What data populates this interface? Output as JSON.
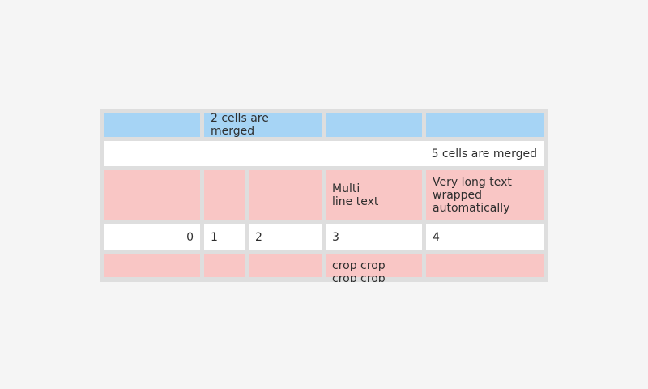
{
  "page": {
    "background_color": "#f5f5f5"
  },
  "table_widget": {
    "frame_color": "#dedede",
    "text_color": "#2e2e2e",
    "cell_colors": {
      "blue": "#a6d4f5",
      "white": "#ffffff",
      "pink": "#f9c6c5"
    },
    "rows": [
      {
        "style": "blue",
        "cells": [
          {
            "text": "",
            "colspan": 1
          },
          {
            "text": "2 cells are merged",
            "colspan": 2,
            "align": "left"
          },
          {
            "text": "",
            "colspan": 1
          },
          {
            "text": "",
            "colspan": 1
          }
        ]
      },
      {
        "style": "white",
        "cells": [
          {
            "text": "5 cells are merged",
            "colspan": 5,
            "align": "right"
          }
        ]
      },
      {
        "style": "pink",
        "cells": [
          {
            "text": ""
          },
          {
            "text": ""
          },
          {
            "text": ""
          },
          {
            "text": "Multi\nline text",
            "align": "left"
          },
          {
            "text": "Very long text wrapped automatically",
            "align": "left"
          }
        ]
      },
      {
        "style": "white",
        "cells": [
          {
            "text": "0",
            "align": "right"
          },
          {
            "text": "1",
            "align": "left"
          },
          {
            "text": "2",
            "align": "left"
          },
          {
            "text": "3",
            "align": "left"
          },
          {
            "text": "4",
            "align": "left"
          }
        ]
      },
      {
        "style": "pink",
        "cells": [
          {
            "text": ""
          },
          {
            "text": ""
          },
          {
            "text": ""
          },
          {
            "text": "crop crop crop crop",
            "align": "left",
            "cropped": true
          },
          {
            "text": ""
          }
        ]
      }
    ]
  }
}
